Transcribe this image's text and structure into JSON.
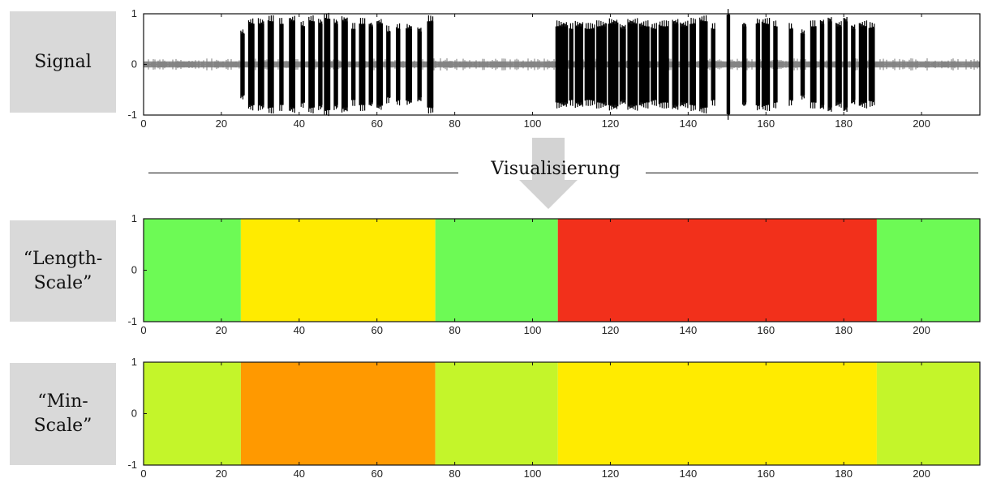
{
  "labels": {
    "signal": "Signal",
    "length_scale": "“Length-\nScale”",
    "min_scale": "“Min-\nScale”",
    "divider": "Visualisierung"
  },
  "colors": {
    "arrow": "#d3d3d3",
    "green": "#6dfa55",
    "yellow": "#ffeb00",
    "red": "#f2301b",
    "orange": "#ff9900",
    "lime": "#c4f52a",
    "waveform": "#000000",
    "noise": "#7a7a7a"
  },
  "chart_data": [
    {
      "type": "line",
      "name": "signal",
      "xlim": [
        0,
        215
      ],
      "ylim": [
        -1,
        1
      ],
      "xticks": [
        0,
        20,
        40,
        60,
        80,
        100,
        120,
        140,
        160,
        180,
        200
      ],
      "yticks": [
        -1,
        0,
        1
      ],
      "noise_amplitude": 0.12,
      "bursts": [
        {
          "x": [
            25,
            26
          ],
          "amp": 0.6
        },
        {
          "x": [
            27,
            28.5
          ],
          "amp": 0.8
        },
        {
          "x": [
            29.5,
            31
          ],
          "amp": 0.8
        },
        {
          "x": [
            32,
            33.5
          ],
          "amp": 0.85
        },
        {
          "x": [
            35,
            36
          ],
          "amp": 0.8
        },
        {
          "x": [
            37.5,
            39
          ],
          "amp": 0.85
        },
        {
          "x": [
            40.5,
            41.5
          ],
          "amp": 0.75
        },
        {
          "x": [
            42.5,
            44
          ],
          "amp": 0.85
        },
        {
          "x": [
            45,
            46
          ],
          "amp": 0.8
        },
        {
          "x": [
            46.5,
            48
          ],
          "amp": 0.9
        },
        {
          "x": [
            49,
            50
          ],
          "amp": 0.8
        },
        {
          "x": [
            51,
            52.5
          ],
          "amp": 0.85
        },
        {
          "x": [
            53.5,
            54.5
          ],
          "amp": 0.7
        },
        {
          "x": [
            55.5,
            57
          ],
          "amp": 0.8
        },
        {
          "x": [
            58,
            59
          ],
          "amp": 0.75
        },
        {
          "x": [
            60,
            61.5
          ],
          "amp": 0.8
        },
        {
          "x": [
            62.5,
            63.5
          ],
          "amp": 0.65
        },
        {
          "x": [
            65,
            66
          ],
          "amp": 0.7
        },
        {
          "x": [
            67.5,
            69
          ],
          "amp": 0.7
        },
        {
          "x": [
            70.5,
            71.5
          ],
          "amp": 0.65
        },
        {
          "x": [
            73,
            74.5
          ],
          "amp": 0.85
        },
        {
          "x": [
            106,
            109
          ],
          "amp": 0.75
        },
        {
          "x": [
            109.5,
            110.5
          ],
          "amp": 0.7
        },
        {
          "x": [
            111,
            113
          ],
          "amp": 0.75
        },
        {
          "x": [
            113.5,
            116
          ],
          "amp": 0.7
        },
        {
          "x": [
            116.5,
            119
          ],
          "amp": 0.75
        },
        {
          "x": [
            119.5,
            122
          ],
          "amp": 0.8
        },
        {
          "x": [
            122.5,
            124
          ],
          "amp": 0.7
        },
        {
          "x": [
            124.5,
            127
          ],
          "amp": 0.8
        },
        {
          "x": [
            127.5,
            130
          ],
          "amp": 0.75
        },
        {
          "x": [
            130.5,
            132
          ],
          "amp": 0.7
        },
        {
          "x": [
            132.5,
            135
          ],
          "amp": 0.75
        },
        {
          "x": [
            136,
            137.5
          ],
          "amp": 0.8
        },
        {
          "x": [
            138,
            140
          ],
          "amp": 0.75
        },
        {
          "x": [
            140.5,
            142
          ],
          "amp": 0.8
        },
        {
          "x": [
            143,
            145
          ],
          "amp": 0.85
        },
        {
          "x": [
            146,
            147
          ],
          "amp": 0.7
        },
        {
          "x": [
            150,
            150.8
          ],
          "amp": 0.98
        },
        {
          "x": [
            154,
            155
          ],
          "amp": 0.75
        },
        {
          "x": [
            157.5,
            158.5
          ],
          "amp": 0.8
        },
        {
          "x": [
            159,
            161
          ],
          "amp": 0.8
        },
        {
          "x": [
            162,
            163
          ],
          "amp": 0.75
        },
        {
          "x": [
            166,
            167
          ],
          "amp": 0.7
        },
        {
          "x": [
            169,
            170
          ],
          "amp": 0.6
        },
        {
          "x": [
            171.5,
            173
          ],
          "amp": 0.75
        },
        {
          "x": [
            174,
            175
          ],
          "amp": 0.8
        },
        {
          "x": [
            176,
            177
          ],
          "amp": 0.85
        },
        {
          "x": [
            178,
            179.5
          ],
          "amp": 0.75
        },
        {
          "x": [
            180,
            181
          ],
          "amp": 0.85
        },
        {
          "x": [
            182,
            183
          ],
          "amp": 0.7
        },
        {
          "x": [
            184,
            186
          ],
          "amp": 0.75
        },
        {
          "x": [
            186.5,
            188
          ],
          "amp": 0.72
        }
      ]
    },
    {
      "type": "heatmap",
      "name": "length-scale",
      "xlim": [
        0,
        215
      ],
      "ylim": [
        -1,
        1
      ],
      "xticks": [
        0,
        20,
        40,
        60,
        80,
        100,
        120,
        140,
        160,
        180,
        200
      ],
      "yticks": [
        -1,
        0,
        1
      ],
      "segments": [
        {
          "x": [
            0,
            25
          ],
          "color": "#6dfa55"
        },
        {
          "x": [
            25,
            75
          ],
          "color": "#ffeb00"
        },
        {
          "x": [
            75,
            106.5
          ],
          "color": "#6dfa55"
        },
        {
          "x": [
            106.5,
            188.5
          ],
          "color": "#f2301b"
        },
        {
          "x": [
            188.5,
            215
          ],
          "color": "#6dfa55"
        }
      ]
    },
    {
      "type": "heatmap",
      "name": "min-scale",
      "xlim": [
        0,
        215
      ],
      "ylim": [
        -1,
        1
      ],
      "xticks": [
        0,
        20,
        40,
        60,
        80,
        100,
        120,
        140,
        160,
        180,
        200
      ],
      "yticks": [
        -1,
        0,
        1
      ],
      "segments": [
        {
          "x": [
            0,
            25
          ],
          "color": "#c4f52a"
        },
        {
          "x": [
            25,
            75
          ],
          "color": "#ff9900"
        },
        {
          "x": [
            75,
            106.5
          ],
          "color": "#c4f52a"
        },
        {
          "x": [
            106.5,
            188.5
          ],
          "color": "#ffeb00"
        },
        {
          "x": [
            188.5,
            215
          ],
          "color": "#c4f52a"
        }
      ]
    }
  ]
}
